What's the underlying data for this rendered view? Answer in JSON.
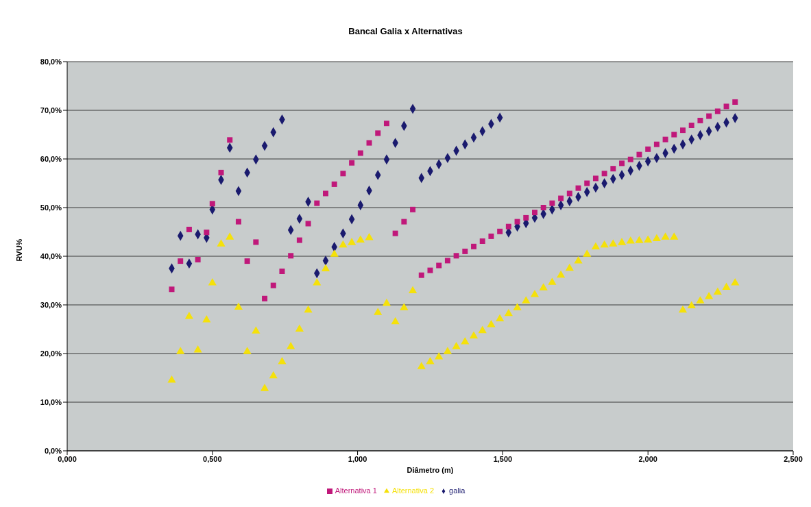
{
  "chart_data": {
    "type": "scatter",
    "title": "Bancal Galia x Alternativas",
    "xlabel": "Diâmetro (m)",
    "ylabel": "RVU%",
    "x": [
      0.36,
      0.39,
      0.42,
      0.45,
      0.48,
      0.5,
      0.53,
      0.56,
      0.59,
      0.62,
      0.65,
      0.68,
      0.71,
      0.74,
      0.77,
      0.8,
      0.83,
      0.86,
      0.89,
      0.92,
      0.95,
      0.98,
      1.01,
      1.04,
      1.07,
      1.1,
      1.13,
      1.16,
      1.19,
      1.22,
      1.25,
      1.28,
      1.31,
      1.34,
      1.37,
      1.4,
      1.43,
      1.46,
      1.49,
      1.52,
      1.55,
      1.58,
      1.61,
      1.64,
      1.67,
      1.7,
      1.73,
      1.76,
      1.79,
      1.82,
      1.85,
      1.88,
      1.91,
      1.94,
      1.97,
      2.0,
      2.03,
      2.06,
      2.09,
      2.12,
      2.15,
      2.18,
      2.21,
      2.24,
      2.27,
      2.3
    ],
    "series": [
      {
        "name": "galia",
        "color": "#1a1a6e",
        "marker": "diamond",
        "values": [
          37.5,
          44.2,
          38.5,
          44.5,
          43.8,
          49.6,
          55.7,
          62.3,
          53.4,
          57.2,
          59.9,
          62.7,
          65.5,
          68.1,
          45.4,
          47.7,
          51.2,
          36.5,
          39.1,
          41.9,
          44.7,
          47.6,
          50.5,
          53.5,
          56.7,
          59.9,
          63.3,
          66.8,
          70.3,
          56.1,
          57.5,
          58.9,
          60.2,
          61.7,
          63.0,
          64.4,
          65.7,
          67.2,
          68.5,
          44.9,
          46.1,
          46.8,
          47.9,
          48.7,
          49.6,
          50.5,
          51.3,
          52.2,
          53.2,
          54.1,
          55.0,
          55.9,
          56.7,
          57.6,
          58.6,
          59.5,
          60.2,
          61.2,
          62.1,
          63.0,
          64.0,
          64.9,
          65.7,
          66.6,
          67.5,
          68.4
        ]
      },
      {
        "name": "Alternativa 1",
        "color": "#c0187a",
        "marker": "square",
        "values": [
          33.2,
          39.0,
          45.5,
          39.3,
          44.9,
          50.8,
          57.2,
          63.9,
          47.1,
          39.0,
          42.9,
          31.3,
          34.0,
          36.9,
          40.1,
          43.3,
          46.7,
          50.9,
          52.9,
          54.8,
          57.0,
          59.2,
          61.2,
          63.3,
          65.3,
          67.3,
          44.7,
          47.1,
          49.6,
          36.1,
          37.1,
          38.1,
          39.1,
          40.1,
          41.0,
          42.0,
          43.1,
          44.1,
          45.1,
          46.1,
          47.1,
          47.9,
          49.0,
          50.0,
          50.9,
          51.9,
          52.9,
          54.0,
          55.0,
          56.0,
          57.0,
          58.0,
          59.1,
          59.9,
          60.9,
          62.0,
          63.0,
          64.0,
          65.0,
          65.9,
          66.9,
          67.9,
          68.8,
          69.8,
          70.8,
          71.7
        ]
      },
      {
        "name": "Alternativa 2",
        "color": "#f5e10a",
        "marker": "triangle",
        "values": [
          14.5,
          20.4,
          27.6,
          20.7,
          26.9,
          34.5,
          42.5,
          43.9,
          29.5,
          20.4,
          24.6,
          12.8,
          15.4,
          18.3,
          21.4,
          25.0,
          28.9,
          34.5,
          37.4,
          40.4,
          42.3,
          42.8,
          43.3,
          43.8,
          28.4,
          30.3,
          26.5,
          29.4,
          32.9,
          17.3,
          18.3,
          19.3,
          20.4,
          21.4,
          22.4,
          23.6,
          24.7,
          25.9,
          27.1,
          28.2,
          29.4,
          30.8,
          32.1,
          33.5,
          34.6,
          36.1,
          37.5,
          39.0,
          40.4,
          41.9,
          42.3,
          42.5,
          42.8,
          43.1,
          43.2,
          43.3,
          43.6,
          43.9,
          43.9,
          28.9,
          29.8,
          30.8,
          31.7,
          32.6,
          33.6,
          34.5
        ]
      }
    ],
    "xlim": [
      0,
      2.5
    ],
    "xticks": [
      {
        "value": 0,
        "label": "0,000"
      },
      {
        "value": 0.5,
        "label": "0,500"
      },
      {
        "value": 1,
        "label": "1,000"
      },
      {
        "value": 1.5,
        "label": "1,500"
      },
      {
        "value": 2,
        "label": "2,000"
      },
      {
        "value": 2.5,
        "label": "2,500"
      }
    ],
    "ylim": [
      0,
      80
    ],
    "yticks": [
      {
        "value": 0,
        "label": "0,0%"
      },
      {
        "value": 10,
        "label": "10,0%"
      },
      {
        "value": 20,
        "label": "20,0%"
      },
      {
        "value": 30,
        "label": "30,0%"
      },
      {
        "value": 40,
        "label": "40,0%"
      },
      {
        "value": 50,
        "label": "50,0%"
      },
      {
        "value": 60,
        "label": "60,0%"
      },
      {
        "value": 70,
        "label": "70,0%"
      },
      {
        "value": 80,
        "label": "80,0%"
      }
    ],
    "grid": "y",
    "legend": "bottom"
  }
}
